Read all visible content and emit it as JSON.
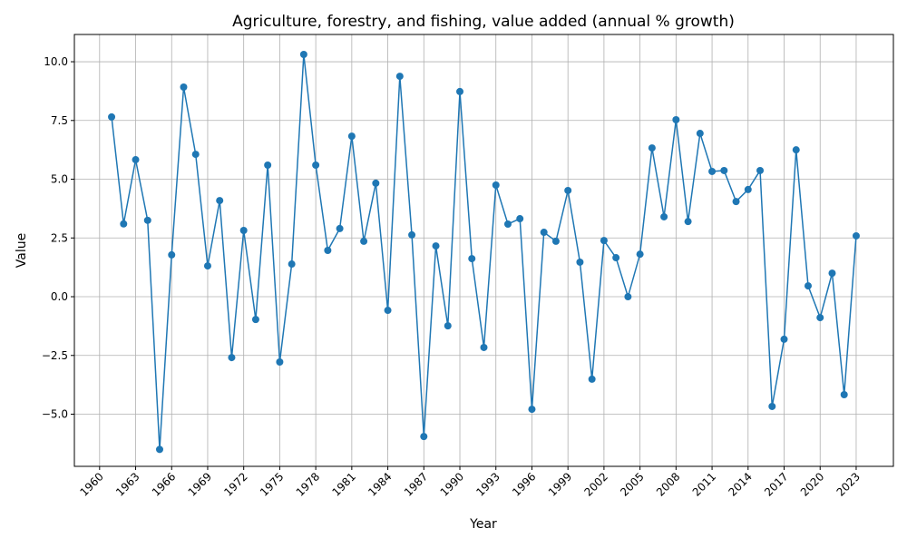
{
  "chart_data": {
    "type": "line",
    "title": "Agriculture, forestry, and fishing, value added (annual % growth)",
    "x_label": "Year",
    "y_label": "Value",
    "x": [
      1961,
      1962,
      1963,
      1964,
      1965,
      1966,
      1967,
      1968,
      1969,
      1970,
      1971,
      1972,
      1973,
      1974,
      1975,
      1976,
      1977,
      1978,
      1979,
      1980,
      1981,
      1982,
      1983,
      1984,
      1985,
      1986,
      1987,
      1988,
      1989,
      1990,
      1991,
      1992,
      1993,
      1994,
      1995,
      1996,
      1997,
      1998,
      1999,
      2000,
      2001,
      2002,
      2003,
      2004,
      2005,
      2006,
      2007,
      2008,
      2009,
      2010,
      2011,
      2012,
      2013,
      2014,
      2015,
      2016,
      2017,
      2018,
      2019,
      2020,
      2021,
      2022,
      2023
    ],
    "values": [
      7.65,
      3.1,
      5.83,
      3.25,
      -6.5,
      1.78,
      8.92,
      6.06,
      1.31,
      4.09,
      -2.59,
      2.82,
      -0.97,
      5.6,
      -2.78,
      1.39,
      10.31,
      5.6,
      1.97,
      2.9,
      6.83,
      2.36,
      4.83,
      -0.58,
      9.38,
      2.63,
      -5.95,
      2.16,
      -1.24,
      8.73,
      1.62,
      -2.16,
      4.75,
      3.09,
      3.32,
      -4.79,
      2.74,
      2.36,
      4.52,
      1.47,
      -3.51,
      2.39,
      1.66,
      0.0,
      1.81,
      6.33,
      3.4,
      7.53,
      3.2,
      6.95,
      5.33,
      5.37,
      4.05,
      4.56,
      5.37,
      -4.67,
      -1.81,
      6.25,
      0.46,
      -0.89,
      1.0,
      -4.17,
      2.59
    ],
    "color": "#1f77b4",
    "xlim": [
      1957.9,
      2026.1
    ],
    "xticks": [
      1960,
      1963,
      1966,
      1969,
      1972,
      1975,
      1978,
      1981,
      1984,
      1987,
      1990,
      1993,
      1996,
      1999,
      2002,
      2005,
      2008,
      2011,
      2014,
      2017,
      2020,
      2023
    ],
    "ylim": [
      -7.22,
      11.16
    ],
    "yticks": [
      {
        "value": -5,
        "label": "−5.0"
      },
      {
        "value": -2.5,
        "label": "−2.5"
      },
      {
        "value": 0,
        "label": "0.0"
      },
      2.5,
      {
        "value": 5,
        "label": "5.0"
      },
      7.5,
      {
        "value": 10,
        "label": "10.0"
      }
    ],
    "grid": true
  }
}
